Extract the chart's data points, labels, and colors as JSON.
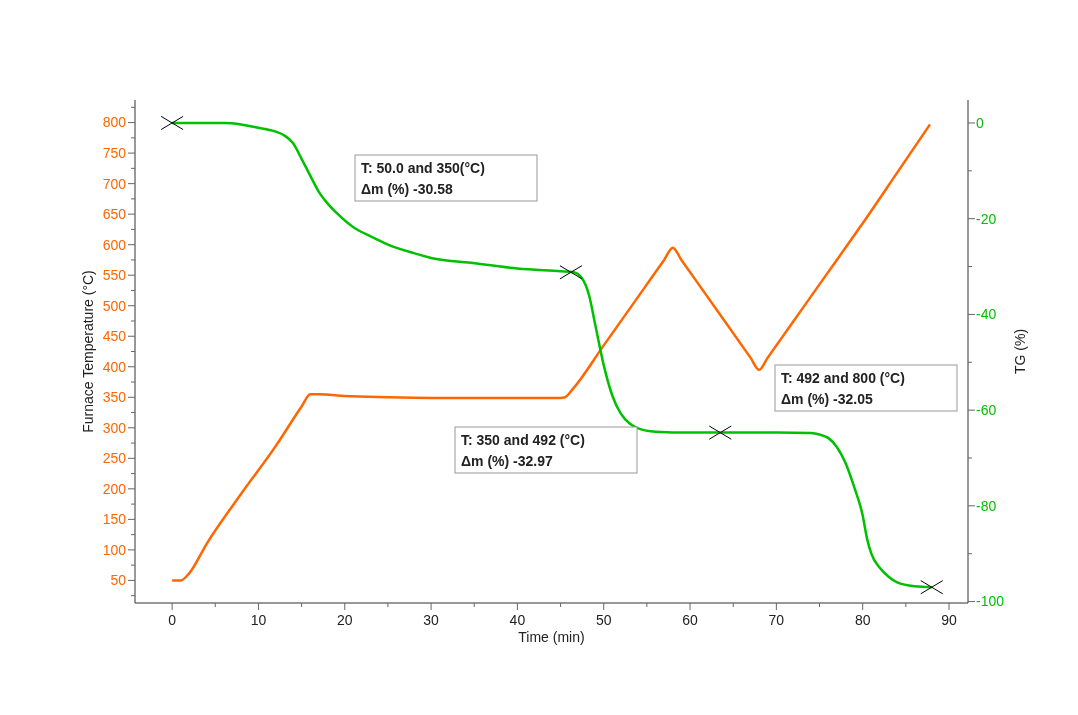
{
  "chart_data": {
    "type": "line",
    "xlabel": "Time (min)",
    "ylabel": "Furnace Temperature (°C)",
    "y2label": "TG (%)",
    "xlim": [
      -4.3,
      92.2
    ],
    "xticks": [
      0,
      {
        "value": 5,
        "label": null
      },
      10,
      {
        "value": 15,
        "label": null
      },
      20,
      {
        "value": 25,
        "label": null
      },
      30,
      {
        "value": 35,
        "label": null
      },
      40,
      {
        "value": 45,
        "label": null
      },
      50,
      {
        "value": 55,
        "label": null
      },
      60,
      {
        "value": 65,
        "label": null
      },
      70,
      {
        "value": 75,
        "label": null
      },
      80,
      {
        "value": 85,
        "label": null
      },
      90
    ],
    "ylim": [
      13,
      837
    ],
    "yticks": [
      {
        "value": 25,
        "label": null
      },
      50,
      {
        "value": 75,
        "label": null
      },
      100,
      {
        "value": 125,
        "label": null
      },
      150,
      {
        "value": 175,
        "label": null
      },
      200,
      {
        "value": 225,
        "label": null
      },
      250,
      {
        "value": 275,
        "label": null
      },
      300,
      {
        "value": 325,
        "label": null
      },
      350,
      {
        "value": 375,
        "label": null
      },
      400,
      {
        "value": 425,
        "label": null
      },
      450,
      {
        "value": 475,
        "label": null
      },
      500,
      {
        "value": 525,
        "label": null
      },
      550,
      {
        "value": 575,
        "label": null
      },
      600,
      {
        "value": 625,
        "label": null
      },
      650,
      {
        "value": 675,
        "label": null
      },
      700,
      {
        "value": 725,
        "label": null
      },
      750,
      {
        "value": 775,
        "label": null
      },
      800,
      {
        "value": 825,
        "label": null
      }
    ],
    "y2lim": [
      -100.3,
      4.8
    ],
    "y2ticks": [
      -100,
      {
        "value": -90,
        "label": null
      },
      -80,
      {
        "value": -70,
        "label": null
      },
      -60,
      {
        "value": -50,
        "label": null
      },
      -40,
      {
        "value": -30,
        "label": null
      },
      -20,
      {
        "value": -10,
        "label": null
      },
      0
    ],
    "grid": false,
    "line_style": "solid",
    "marker": "none",
    "series": [
      {
        "color": "#ff6600",
        "x": [
          0,
          1,
          2,
          4,
          8,
          12,
          15,
          16,
          17,
          20,
          25,
          30,
          35,
          40,
          45,
          45.5,
          46.5,
          50,
          55,
          57,
          58,
          59,
          63,
          67,
          68,
          69,
          72,
          76,
          80,
          84,
          87.8
        ],
        "values": [
          50,
          50,
          62,
          110,
          192,
          270,
          335,
          355,
          355,
          352,
          350,
          349,
          349,
          349,
          349,
          350,
          365,
          435,
          535,
          575,
          595,
          575,
          495,
          415,
          395,
          415,
          475,
          555,
          635,
          718,
          797
        ]
      },
      {
        "color": "#00c000",
        "axis": "y2",
        "x": [
          0,
          3,
          6,
          8,
          10,
          12,
          13,
          14,
          15,
          16,
          17,
          18,
          19,
          21,
          23,
          25,
          28,
          30,
          35,
          40,
          45,
          46.5,
          47.5,
          48.3,
          49,
          50,
          51,
          52,
          53,
          54,
          56,
          60,
          65,
          70,
          74,
          75,
          76,
          77,
          78,
          79,
          80,
          80.5,
          81,
          82,
          83,
          84,
          86,
          88
        ],
        "values": [
          0,
          0,
          0,
          -0.3,
          -1,
          -1.8,
          -2.6,
          -4.2,
          -7.5,
          -11,
          -14.4,
          -16.8,
          -18.7,
          -21.8,
          -23.7,
          -25.4,
          -27.2,
          -28.2,
          -29.3,
          -30.4,
          -31,
          -31.2,
          -32.5,
          -36,
          -42,
          -50.6,
          -57,
          -60.8,
          -62.8,
          -63.8,
          -64.5,
          -64.7,
          -64.7,
          -64.7,
          -64.8,
          -65.1,
          -65.8,
          -67.7,
          -71,
          -76,
          -82,
          -86.8,
          -90,
          -93,
          -94.8,
          -96,
          -96.8,
          -97
        ]
      },
      {
        "type": "scatter",
        "axis": "y2",
        "marker": "cross",
        "color": "#000000",
        "x": [
          0,
          46.2,
          63.5,
          88
        ],
        "values": [
          0,
          -31.2,
          -64.7,
          -97
        ]
      }
    ],
    "annotations": [
      "T: 50.0 and 350(°C)\nΔm (%) -30.58",
      "T: 350 and 492 (°C)\nΔm (%) -32.97",
      "T: 492 and 800 (°C)\nΔm (%) -32.05"
    ]
  }
}
